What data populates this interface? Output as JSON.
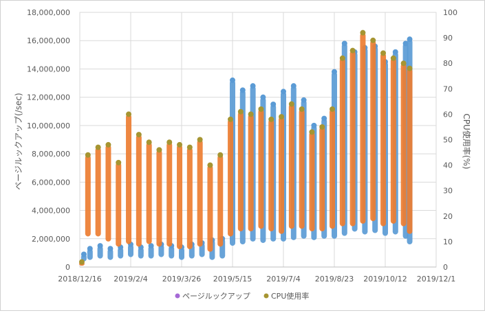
{
  "chart_data": {
    "type": "scatter",
    "title": "",
    "ylabel": "ページルックアップ(/sec)",
    "y2label": "CPU使用率(%)",
    "xlabel": "",
    "x_ticks": [
      "2018/12/16",
      "2019/2/4",
      "2019/3/26",
      "2019/5/15",
      "2019/7/4",
      "2019/8/23",
      "2019/10/12",
      "2019/12/1"
    ],
    "xlim": [
      "2018/12/16",
      "2019/12/1"
    ],
    "y_ticks": [
      "0",
      "2,000,000",
      "4,000,000",
      "6,000,000",
      "8,000,000",
      "10,000,000",
      "12,000,000",
      "14,000,000",
      "16,000,000",
      "18,000,000"
    ],
    "ylim": [
      0,
      18000000
    ],
    "y2_ticks": [
      "0",
      "10",
      "20",
      "30",
      "40",
      "50",
      "60",
      "70",
      "80",
      "90",
      "100"
    ],
    "y2lim": [
      0,
      100
    ],
    "grid": true,
    "legend_position": "bottom",
    "series": [
      {
        "name": "ページルックアップ",
        "axis": "left",
        "color": "#5b9bd5",
        "legend_color": "#a569d6",
        "points": [
          [
            "2018-12-20",
            900000,
            400000
          ],
          [
            "2018-12-26",
            1300000,
            500000
          ],
          [
            "2019-01-05",
            1500000,
            600000
          ],
          [
            "2019-01-15",
            1300000,
            500000
          ],
          [
            "2019-01-25",
            1400000,
            600000
          ],
          [
            "2019-02-04",
            1600000,
            700000
          ],
          [
            "2019-02-14",
            1400000,
            600000
          ],
          [
            "2019-02-24",
            1500000,
            600000
          ],
          [
            "2019-03-06",
            1600000,
            700000
          ],
          [
            "2019-03-16",
            1500000,
            600000
          ],
          [
            "2019-03-26",
            1400000,
            500000
          ],
          [
            "2019-04-05",
            1600000,
            600000
          ],
          [
            "2019-04-15",
            1700000,
            700000
          ],
          [
            "2019-04-25",
            1900000,
            500000
          ],
          [
            "2019-05-05",
            2000000,
            600000
          ],
          [
            "2019-05-15",
            13200000,
            1500000
          ],
          [
            "2019-05-25",
            12500000,
            1600000
          ],
          [
            "2019-06-04",
            12800000,
            1800000
          ],
          [
            "2019-06-14",
            12000000,
            1700000
          ],
          [
            "2019-06-24",
            11500000,
            1800000
          ],
          [
            "2019-07-04",
            12400000,
            1800000
          ],
          [
            "2019-07-14",
            12800000,
            1900000
          ],
          [
            "2019-07-24",
            11800000,
            2000000
          ],
          [
            "2019-08-03",
            10000000,
            1900000
          ],
          [
            "2019-08-13",
            10500000,
            2000000
          ],
          [
            "2019-08-23",
            13800000,
            2000000
          ],
          [
            "2019-09-02",
            15800000,
            2200000
          ],
          [
            "2019-09-12",
            15200000,
            2500000
          ],
          [
            "2019-09-22",
            15500000,
            2300000
          ],
          [
            "2019-10-02",
            15600000,
            2400000
          ],
          [
            "2019-10-12",
            14500000,
            2200000
          ],
          [
            "2019-10-22",
            15200000,
            2300000
          ],
          [
            "2019-11-01",
            15800000,
            2000000
          ],
          [
            "2019-11-05",
            16100000,
            1600000
          ]
        ]
      },
      {
        "name": "CPU使用率",
        "axis": "right",
        "color": "#ed7d31",
        "legend_color": "#a69532",
        "points": [
          [
            "2018-12-18",
            2,
            0.5
          ],
          [
            "2018-12-24",
            44,
            12
          ],
          [
            "2019-01-03",
            47,
            12
          ],
          [
            "2019-01-13",
            48,
            10
          ],
          [
            "2019-01-23",
            41,
            8
          ],
          [
            "2019-02-02",
            60,
            9
          ],
          [
            "2019-02-12",
            52,
            8
          ],
          [
            "2019-02-22",
            49,
            9
          ],
          [
            "2019-03-04",
            46,
            8
          ],
          [
            "2019-03-14",
            49,
            8
          ],
          [
            "2019-03-24",
            48,
            7
          ],
          [
            "2019-04-03",
            47,
            7
          ],
          [
            "2019-04-13",
            50,
            8
          ],
          [
            "2019-04-23",
            40,
            6
          ],
          [
            "2019-05-03",
            44,
            8
          ],
          [
            "2019-05-13",
            58,
            12
          ],
          [
            "2019-05-23",
            61,
            14
          ],
          [
            "2019-06-02",
            60,
            14
          ],
          [
            "2019-06-12",
            62,
            15
          ],
          [
            "2019-06-22",
            58,
            14
          ],
          [
            "2019-07-02",
            59,
            13
          ],
          [
            "2019-07-12",
            64,
            15
          ],
          [
            "2019-07-22",
            62,
            15
          ],
          [
            "2019-08-01",
            53,
            14
          ],
          [
            "2019-08-11",
            55,
            14
          ],
          [
            "2019-08-21",
            62,
            15
          ],
          [
            "2019-08-31",
            82,
            16
          ],
          [
            "2019-09-10",
            85,
            16
          ],
          [
            "2019-09-20",
            92,
            17
          ],
          [
            "2019-09-30",
            89,
            18
          ],
          [
            "2019-10-10",
            84,
            16
          ],
          [
            "2019-10-20",
            82,
            17
          ],
          [
            "2019-10-30",
            80,
            16
          ],
          [
            "2019-11-05",
            78,
            13
          ]
        ]
      }
    ]
  }
}
